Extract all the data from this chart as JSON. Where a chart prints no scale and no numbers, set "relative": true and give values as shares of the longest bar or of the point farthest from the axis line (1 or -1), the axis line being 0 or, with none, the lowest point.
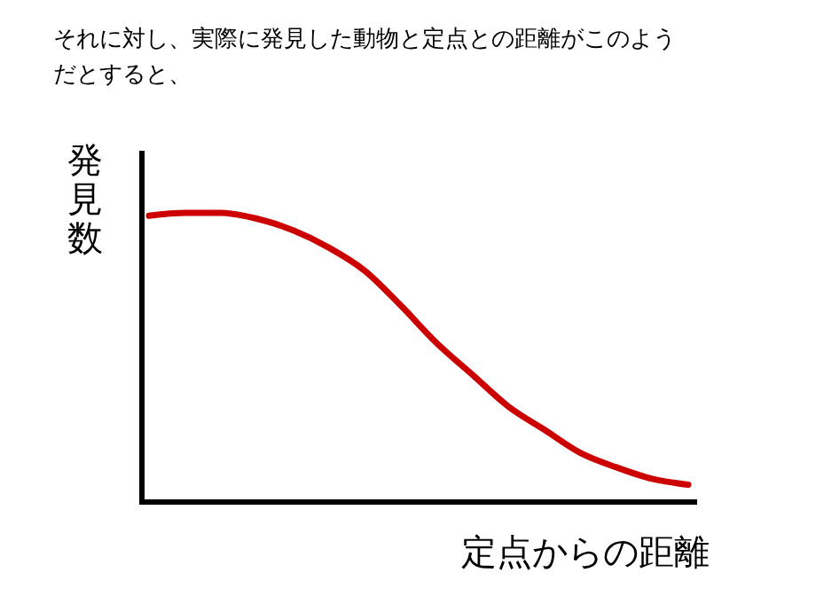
{
  "chart_data": {
    "type": "line",
    "title": "それに対し、実際に発見した動物と定点との距離がこのようだとすると、",
    "xlabel": "定点からの距離",
    "ylabel": "発見数",
    "relative": true,
    "marker": "none",
    "line_style": "solid",
    "categories": [
      null,
      null,
      null,
      null,
      null,
      null,
      null,
      null,
      null,
      null,
      null,
      null,
      null,
      null,
      null,
      null
    ],
    "series": [
      {
        "color": "#cc0000",
        "values": [
          0.99,
          1,
          1,
          0.98,
          0.94,
          0.88,
          0.8,
          0.68,
          0.55,
          0.44,
          0.33,
          0.25,
          0.17,
          0.12,
          0.08,
          0.06
        ]
      }
    ]
  }
}
